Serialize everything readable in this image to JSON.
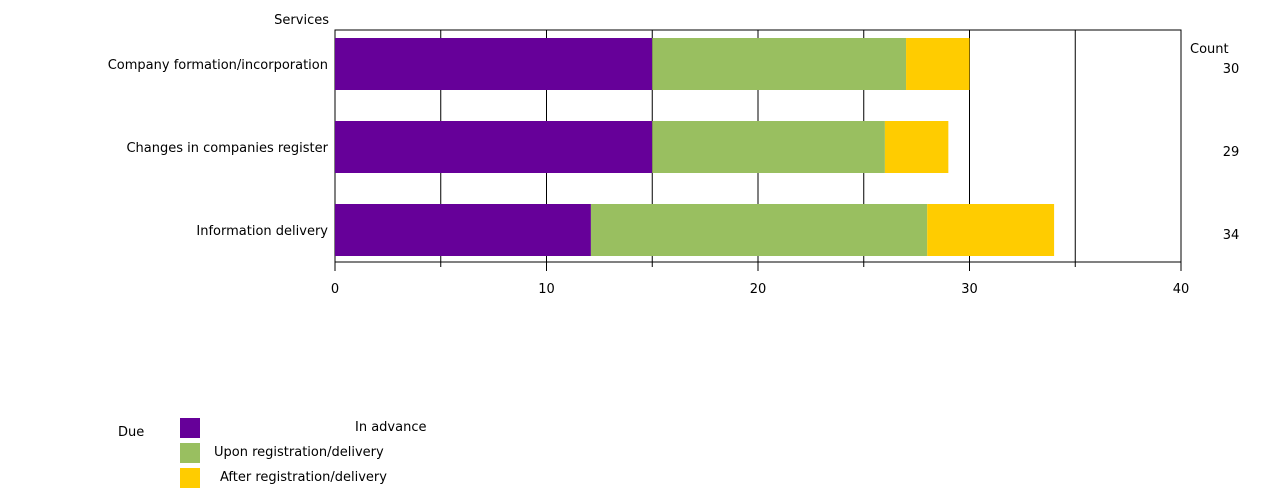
{
  "chart_data": {
    "type": "bar",
    "orientation": "horizontal",
    "stacked": true,
    "category_axis_title": "Services",
    "total_column_title": "Count",
    "categories": [
      "Company formation/incorporation",
      "Changes in companies register",
      "Information delivery"
    ],
    "totals": [
      30,
      29,
      34
    ],
    "series": [
      {
        "name": "In advance",
        "values": [
          15,
          15,
          12.1
        ],
        "color": "#660099"
      },
      {
        "name": "Upon registration/delivery",
        "values": [
          12,
          11,
          15.9
        ],
        "color": "#99bf60"
      },
      {
        "name": "After registration/delivery",
        "values": [
          3,
          3,
          6
        ],
        "color": "#ffcc00"
      }
    ],
    "xlim": [
      0,
      40
    ],
    "xticks": [
      0,
      10,
      20,
      30,
      40
    ],
    "grid": true,
    "legend_title": "Due",
    "legend_position": "bottom-left"
  }
}
